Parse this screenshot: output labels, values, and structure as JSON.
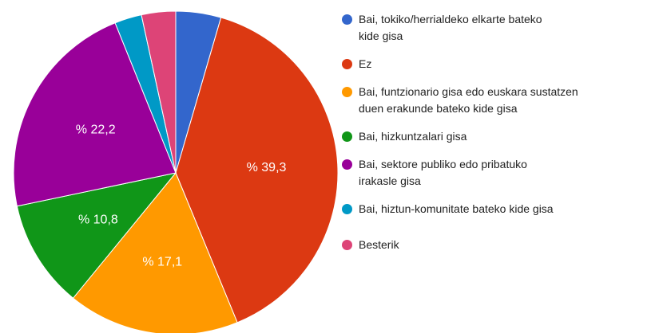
{
  "chart_data": {
    "type": "pie",
    "categories": [
      "Bai, tokiko/herrialdeko elkarte bateko kide gisa",
      "Ez",
      "Bai, funtzionario gisa edo euskara sustatzen duen erakunde bateko kide gisa",
      "Bai, hizkuntzalari gisa",
      "Bai, sektore publiko edo pribatuko irakasle gisa",
      "Bai, hiztun-komunitate bateko kide gisa",
      "Besterik"
    ],
    "values": [
      4.5,
      39.3,
      17.1,
      10.8,
      22.2,
      2.7,
      3.4
    ],
    "value_labels": [
      null,
      "% 39,3",
      "% 17,1",
      "% 10,8",
      "% 22,2",
      null,
      null
    ],
    "colors": [
      "#3366cc",
      "#dc3912",
      "#ff9900",
      "#109618",
      "#990099",
      "#0099c6",
      "#dd4477"
    ]
  }
}
